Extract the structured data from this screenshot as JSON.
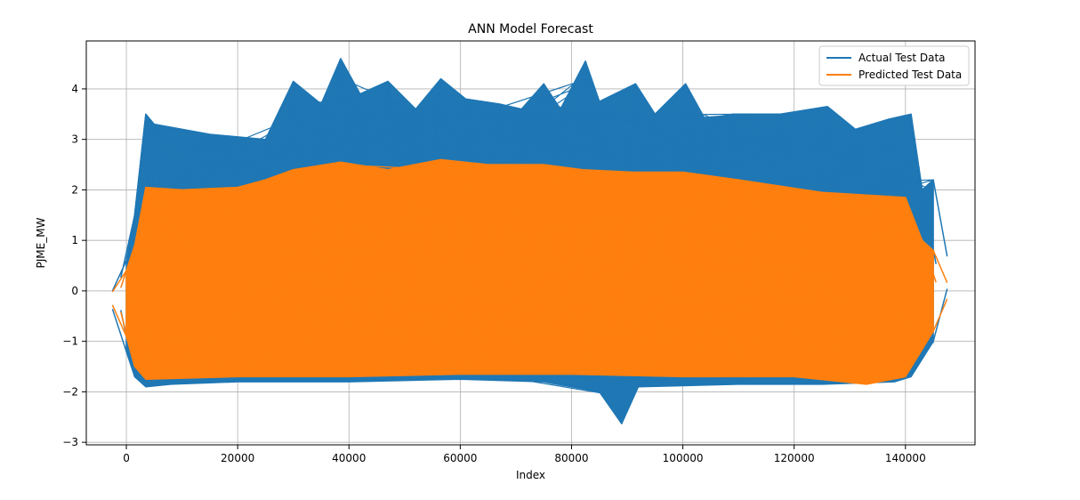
{
  "chart_data": {
    "type": "line",
    "title": "ANN Model Forecast",
    "xlabel": "Index",
    "ylabel": "PJME_MW",
    "xlim": [
      -7200,
      152500
    ],
    "ylim": [
      -3.05,
      4.95
    ],
    "xticks": [
      0,
      20000,
      40000,
      60000,
      80000,
      100000,
      120000,
      140000
    ],
    "yticks": [
      -3,
      -2,
      -1,
      0,
      1,
      2,
      3,
      4
    ],
    "grid": true,
    "legend_position": "top-right",
    "series": [
      {
        "name": "Actual Test Data",
        "color": "#1f77b4",
        "band": {
          "x_start": 0,
          "x_end": 145000,
          "upper": [
            [
              0,
              0.6
            ],
            [
              1500,
              1.5
            ],
            [
              3500,
              3.5
            ],
            [
              5000,
              3.3
            ],
            [
              15000,
              3.1
            ],
            [
              25000,
              3.0
            ],
            [
              30000,
              4.15
            ],
            [
              35000,
              3.7
            ],
            [
              38500,
              4.6
            ],
            [
              42000,
              3.9
            ],
            [
              47000,
              4.15
            ],
            [
              52000,
              3.6
            ],
            [
              56500,
              4.2
            ],
            [
              61000,
              3.8
            ],
            [
              67000,
              3.7
            ],
            [
              71000,
              3.6
            ],
            [
              75000,
              4.1
            ],
            [
              78000,
              3.6
            ],
            [
              82500,
              4.55
            ],
            [
              85000,
              3.75
            ],
            [
              91500,
              4.1
            ],
            [
              95000,
              3.5
            ],
            [
              100500,
              4.1
            ],
            [
              104000,
              3.4
            ],
            [
              109000,
              3.5
            ],
            [
              117500,
              3.5
            ],
            [
              126000,
              3.65
            ],
            [
              131000,
              3.2
            ],
            [
              137000,
              3.4
            ],
            [
              141000,
              3.5
            ],
            [
              143000,
              2.0
            ],
            [
              145000,
              2.2
            ]
          ],
          "lower": [
            [
              0,
              -1.2
            ],
            [
              1500,
              -1.7
            ],
            [
              3500,
              -1.9
            ],
            [
              8000,
              -1.85
            ],
            [
              20000,
              -1.8
            ],
            [
              40000,
              -1.8
            ],
            [
              60000,
              -1.75
            ],
            [
              75000,
              -1.8
            ],
            [
              85000,
              -2.0
            ],
            [
              89000,
              -2.63
            ],
            [
              92000,
              -1.9
            ],
            [
              110000,
              -1.85
            ],
            [
              125000,
              -1.85
            ],
            [
              138000,
              -1.8
            ],
            [
              141000,
              -1.7
            ],
            [
              145000,
              -1.0
            ]
          ]
        }
      },
      {
        "name": "Predicted Test Data",
        "color": "#ff7f0e",
        "band": {
          "x_start": 0,
          "x_end": 145000,
          "upper": [
            [
              0,
              0.4
            ],
            [
              1500,
              0.9
            ],
            [
              3500,
              2.05
            ],
            [
              10000,
              2.0
            ],
            [
              20000,
              2.05
            ],
            [
              25000,
              2.2
            ],
            [
              30000,
              2.4
            ],
            [
              38500,
              2.55
            ],
            [
              47000,
              2.4
            ],
            [
              56500,
              2.6
            ],
            [
              65000,
              2.5
            ],
            [
              75000,
              2.5
            ],
            [
              82000,
              2.4
            ],
            [
              91000,
              2.35
            ],
            [
              100000,
              2.35
            ],
            [
              110000,
              2.2
            ],
            [
              125000,
              1.95
            ],
            [
              140000,
              1.85
            ],
            [
              143000,
              1.0
            ],
            [
              145000,
              0.8
            ]
          ],
          "lower": [
            [
              0,
              -0.9
            ],
            [
              1500,
              -1.5
            ],
            [
              3500,
              -1.75
            ],
            [
              20000,
              -1.7
            ],
            [
              40000,
              -1.7
            ],
            [
              60000,
              -1.65
            ],
            [
              80000,
              -1.65
            ],
            [
              100000,
              -1.7
            ],
            [
              120000,
              -1.7
            ],
            [
              133000,
              -1.85
            ],
            [
              140000,
              -1.7
            ],
            [
              145000,
              -0.8
            ]
          ]
        }
      }
    ]
  }
}
